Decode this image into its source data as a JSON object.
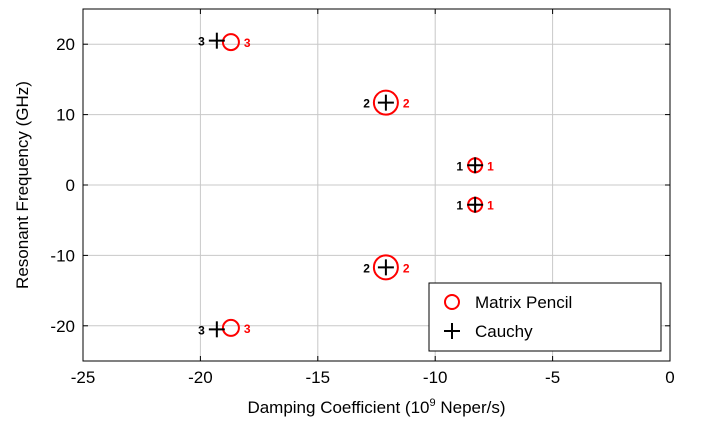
{
  "chart_data": {
    "type": "scatter",
    "xlabel": {
      "prefix": "Damping Coefficient (10",
      "sup": "9",
      "suffix": " Neper/s)"
    },
    "ylabel": "Resonant Frequency (GHz)",
    "xlim": [
      -25,
      0
    ],
    "ylim": [
      -25,
      25
    ],
    "xticks": [
      -25,
      -20,
      -15,
      -10,
      -5,
      0
    ],
    "yticks": [
      -20,
      -10,
      0,
      10,
      20
    ],
    "grid": true,
    "legend_position": "bottom-right",
    "series": [
      {
        "name": "Matrix Pencil",
        "marker": "circle",
        "color": "#ff0000",
        "points": [
          {
            "x": -18.7,
            "y": 20.3,
            "label": "3",
            "size": 8
          },
          {
            "x": -12.1,
            "y": 11.7,
            "label": "2",
            "size": 12
          },
          {
            "x": -8.3,
            "y": 2.8,
            "label": "1",
            "size": 7
          },
          {
            "x": -8.3,
            "y": -2.8,
            "label": "1",
            "size": 7
          },
          {
            "x": -12.1,
            "y": -11.7,
            "label": "2",
            "size": 12
          },
          {
            "x": -18.7,
            "y": -20.3,
            "label": "3",
            "size": 8
          }
        ]
      },
      {
        "name": "Cauchy",
        "marker": "plus",
        "color": "#000000",
        "points": [
          {
            "x": -19.3,
            "y": 20.5,
            "label": "3"
          },
          {
            "x": -12.1,
            "y": 11.7,
            "label": "2"
          },
          {
            "x": -8.3,
            "y": 2.8,
            "label": "1"
          },
          {
            "x": -8.3,
            "y": -2.8,
            "label": "1"
          },
          {
            "x": -12.1,
            "y": -11.7,
            "label": "2"
          },
          {
            "x": -19.3,
            "y": -20.5,
            "label": "3"
          }
        ]
      }
    ]
  }
}
